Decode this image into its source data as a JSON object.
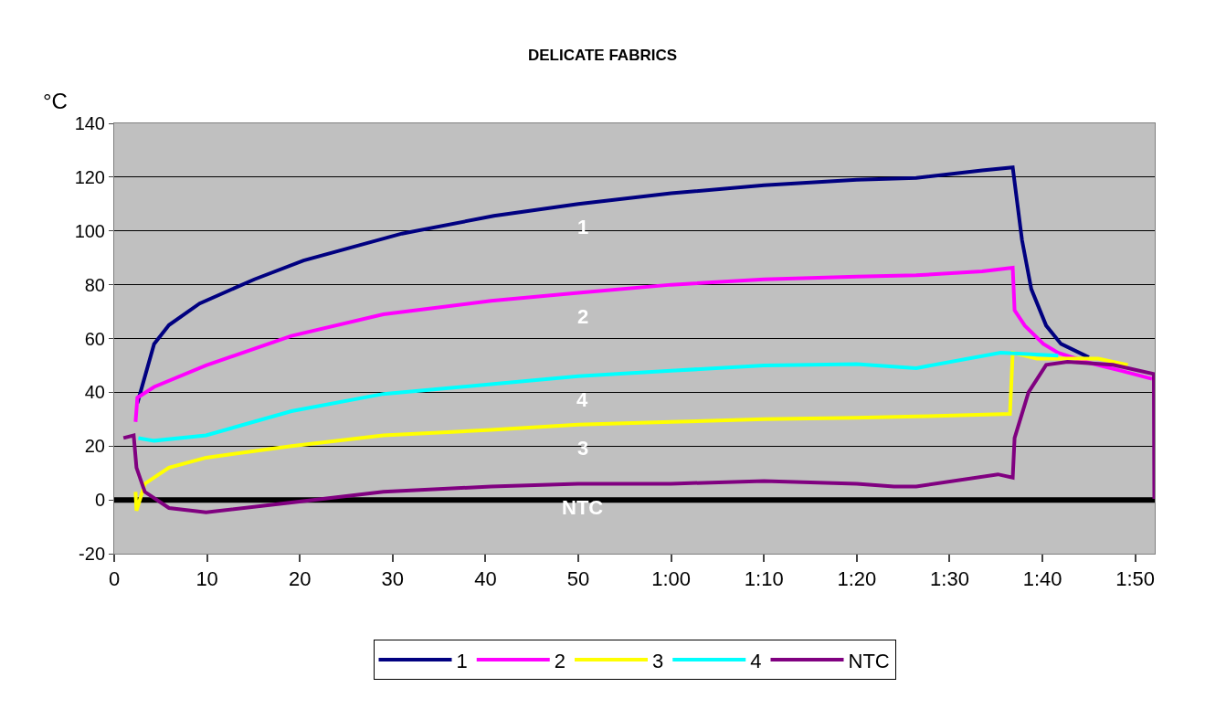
{
  "chart_data": {
    "type": "line",
    "title": "DELICATE FABRICS",
    "ylabel": "°C",
    "xlim": [
      0,
      112.1
    ],
    "ylim": [
      -20,
      140
    ],
    "xticks": [
      0,
      10,
      20,
      30,
      40,
      50,
      {
        "value": 60,
        "label": "1:00"
      },
      {
        "value": 70,
        "label": "1:10"
      },
      {
        "value": 80,
        "label": "1:20"
      },
      {
        "value": 90,
        "label": "1:30"
      },
      {
        "value": 100,
        "label": "1:40"
      },
      {
        "value": 110,
        "label": "1:50"
      }
    ],
    "yticks": [
      -20,
      0,
      20,
      40,
      60,
      80,
      100,
      120,
      140
    ],
    "grid": "y",
    "legend": "bottom",
    "line_style": "solid",
    "marker": "none",
    "ref_lines": [
      {
        "axis": "y",
        "value": 0,
        "color": "#000000"
      }
    ],
    "series": [
      {
        "name": "1",
        "color": "#000080",
        "x": [
          2.5,
          4.3,
          5.9,
          9.2,
          15.1,
          20.4,
          31,
          40.9,
          50,
          60,
          70,
          80,
          86.4,
          93.5,
          96.8,
          97.8,
          98.8,
          100.4,
          102,
          105
        ],
        "values": [
          36,
          58,
          65,
          73,
          82,
          89,
          99,
          105.6,
          110,
          114,
          117,
          119,
          119.7,
          122.5,
          123.6,
          96.6,
          78.4,
          64.8,
          58,
          53
        ]
      },
      {
        "name": "2",
        "color": "#ff00ff",
        "x": [
          2.3,
          2.5,
          4.3,
          9.9,
          19.1,
          29,
          40.6,
          50,
          60,
          70,
          80,
          86.4,
          93.5,
          96.8,
          97,
          98.1,
          100.1,
          101.7,
          105,
          108.6,
          111.8
        ],
        "values": [
          29,
          38,
          42,
          50,
          61,
          69,
          74,
          77,
          80,
          82,
          83,
          83.5,
          85,
          86.3,
          70.5,
          64.8,
          58,
          54.7,
          51,
          47.9,
          45
        ]
      },
      {
        "name": "3",
        "color": "#ffff00",
        "x": [
          2.3,
          2.4,
          3.3,
          5.9,
          9.9,
          19.1,
          29,
          40.6,
          50,
          60,
          70,
          80,
          86.4,
          96.5,
          96.8,
          99.4,
          106,
          109.2
        ],
        "values": [
          3,
          -4,
          6,
          12,
          15.7,
          20,
          24,
          26,
          28,
          29,
          30,
          30.5,
          31,
          32,
          54.7,
          52.5,
          52.5,
          50.2
        ]
      },
      {
        "name": "4",
        "color": "#00ffff",
        "x": [
          2.6,
          4.3,
          9.9,
          19.1,
          29,
          40.6,
          50,
          60,
          70,
          80,
          86.4,
          95.5,
          101.7
        ],
        "values": [
          23,
          22,
          24,
          33,
          39.4,
          43,
          46,
          48,
          50,
          50.5,
          49,
          54.7,
          53.6
        ]
      },
      {
        "name": "NTC",
        "color": "#800080",
        "x": [
          1,
          2.1,
          2.4,
          3.3,
          5.9,
          9.9,
          19.1,
          29,
          40.6,
          50,
          60,
          70,
          80,
          84,
          86.4,
          95.2,
          96.8,
          97,
          98.5,
          100.4,
          102.7,
          107.6,
          112,
          112.05
        ],
        "values": [
          23,
          24,
          12,
          3,
          -3,
          -4.6,
          -1,
          3,
          5,
          6,
          6,
          7,
          6,
          5,
          5,
          9.5,
          8.3,
          23,
          40,
          50.2,
          51.3,
          50.2,
          46.8,
          0.4
        ]
      }
    ]
  }
}
